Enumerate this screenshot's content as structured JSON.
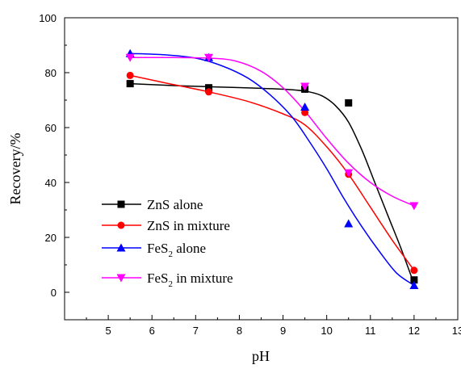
{
  "chart_data": {
    "type": "scatter",
    "xlabel": "pH",
    "ylabel": "Recovery/%",
    "xlim": [
      4,
      13
    ],
    "ylim": [
      -10,
      100
    ],
    "xticks": [
      5,
      6,
      7,
      8,
      9,
      10,
      11,
      12,
      13
    ],
    "yticks": [
      0,
      20,
      40,
      60,
      80,
      100
    ],
    "grid": false,
    "legend_position": "bottom-left",
    "series": [
      {
        "name": "ZnS alone",
        "name_main": "ZnS alone",
        "name_sub": "",
        "name_rest": "",
        "color": "#000000",
        "marker": "square",
        "x": [
          5.5,
          7.3,
          9.5,
          10.5,
          12
        ],
        "y": [
          76,
          74.5,
          74,
          69,
          4.5
        ],
        "curve": [
          [
            5.5,
            76
          ],
          [
            6.5,
            75.3
          ],
          [
            7.5,
            74.8
          ],
          [
            8.5,
            74.3
          ],
          [
            9.2,
            73.8
          ],
          [
            9.6,
            73
          ],
          [
            9.9,
            71.5
          ],
          [
            10.2,
            68
          ],
          [
            10.5,
            62
          ],
          [
            10.8,
            52
          ],
          [
            11.1,
            40
          ],
          [
            11.4,
            28
          ],
          [
            11.7,
            16
          ],
          [
            12,
            3
          ]
        ]
      },
      {
        "name": "ZnS in mixture",
        "name_main": "ZnS in mixture",
        "name_sub": "",
        "name_rest": "",
        "color": "#ff0000",
        "marker": "circle",
        "x": [
          5.5,
          7.3,
          9.5,
          10.5,
          12
        ],
        "y": [
          79,
          73,
          65.5,
          43,
          8
        ],
        "curve": [
          [
            5.5,
            79
          ],
          [
            6.3,
            76.3
          ],
          [
            7.3,
            73
          ],
          [
            8.2,
            69.5
          ],
          [
            9,
            65
          ],
          [
            9.5,
            61
          ],
          [
            10,
            53
          ],
          [
            10.5,
            43
          ],
          [
            11,
            31
          ],
          [
            11.5,
            19
          ],
          [
            12,
            8
          ]
        ]
      },
      {
        "name": "FeS2 alone",
        "name_main": "FeS",
        "name_sub": "2",
        "name_rest": " alone",
        "color": "#0000ff",
        "marker": "triangle-up",
        "x": [
          5.5,
          7.3,
          9.5,
          10.5,
          12
        ],
        "y": [
          87,
          85.5,
          67.5,
          25,
          2.5
        ],
        "curve": [
          [
            5.5,
            87
          ],
          [
            6.3,
            86.5
          ],
          [
            7,
            85.3
          ],
          [
            7.6,
            82.5
          ],
          [
            8.2,
            78
          ],
          [
            8.7,
            72
          ],
          [
            9.2,
            64
          ],
          [
            9.6,
            55
          ],
          [
            10,
            45
          ],
          [
            10.4,
            34
          ],
          [
            10.8,
            24
          ],
          [
            11.2,
            15
          ],
          [
            11.6,
            7
          ],
          [
            12,
            2.5
          ]
        ]
      },
      {
        "name": "FeS2 in mixture",
        "name_main": "FeS",
        "name_sub": "2",
        "name_rest": " in mixture",
        "color": "#ff00ff",
        "marker": "triangle-down",
        "x": [
          5.5,
          7.3,
          9.5,
          10.5,
          12
        ],
        "y": [
          85.5,
          85.5,
          75,
          43.5,
          31.5
        ],
        "curve": [
          [
            5.5,
            85.5
          ],
          [
            6.5,
            85.5
          ],
          [
            7.3,
            85.3
          ],
          [
            7.9,
            84.3
          ],
          [
            8.5,
            80.5
          ],
          [
            9,
            74.5
          ],
          [
            9.5,
            66
          ],
          [
            10,
            56
          ],
          [
            10.5,
            47
          ],
          [
            11,
            40
          ],
          [
            11.5,
            35
          ],
          [
            12,
            31.5
          ]
        ]
      }
    ]
  }
}
